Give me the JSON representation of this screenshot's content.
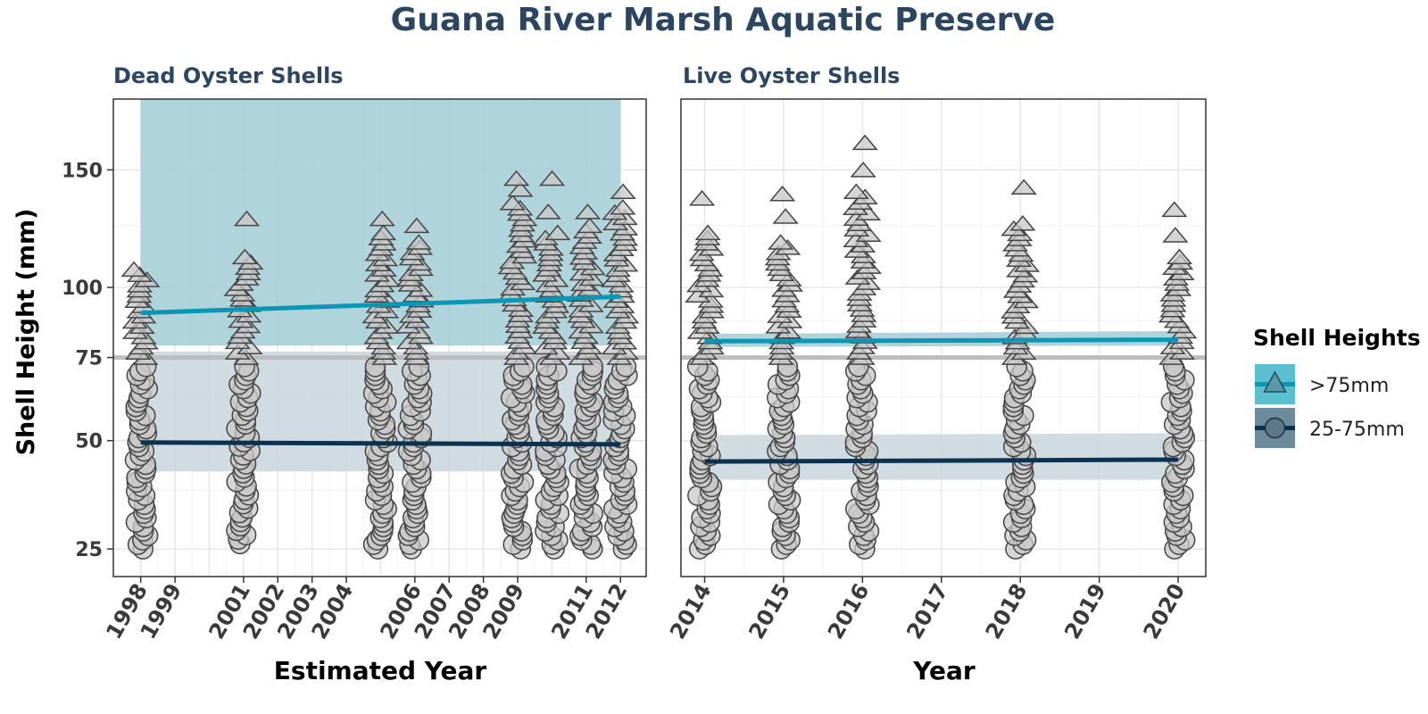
{
  "title": "Guana River Marsh Aquatic Preserve",
  "ylabel": "Shell Height (mm)",
  "legend": {
    "title": "Shell Heights",
    "items": [
      {
        "label": ">75mm",
        "shape": "triangle",
        "line_color": "#0a96b4",
        "fill_color": "#5bbfd0"
      },
      {
        "label": "25-75mm",
        "shape": "circle",
        "line_color": "#0b3150",
        "fill_color": "#6b8a9c"
      }
    ]
  },
  "colors": {
    "large_line": "#0a96b4",
    "small_line": "#0b3150",
    "large_band": "#a2ccd5",
    "small_band": "#c9d5dd",
    "ref_line": "#bdbdbd",
    "point_fill": "#c8c8c8",
    "point_stroke": "#444444",
    "title": "#2c4560"
  },
  "chart_data": [
    {
      "type": "scatter",
      "facet_title": "Dead Oyster Shells",
      "xlabel": "Estimated Year",
      "xlim": [
        1997.2,
        2012.75
      ],
      "ylim": [
        20,
        185
      ],
      "y_ticks": [
        25,
        50,
        75,
        100,
        150
      ],
      "x_ticks": [
        1998,
        1999,
        2001,
        2002,
        2003,
        2004,
        2006,
        2007,
        2008,
        2009,
        2011,
        2012
      ],
      "x_gridlines": [
        1998,
        1999,
        2000,
        2001,
        2002,
        2003,
        2004,
        2005,
        2006,
        2007,
        2008,
        2009,
        2010,
        2011,
        2012
      ],
      "y_scale": "sqrt",
      "reference_line": 75,
      "point_groups": [
        {
          "x": 1998.0,
          "small": [
            25,
            72
          ],
          "large": [
            75,
            107
          ],
          "large_outliers": []
        },
        {
          "x": 2001.0,
          "small": [
            26,
            72
          ],
          "large": [
            75,
            112
          ],
          "large_outliers": [
            128
          ]
        },
        {
          "x": 2005.0,
          "small": [
            25,
            72
          ],
          "large": [
            75,
            122
          ],
          "large_outliers": [
            128
          ]
        },
        {
          "x": 2006.0,
          "small": [
            25,
            72
          ],
          "large": [
            75,
            118
          ],
          "large_outliers": [
            125
          ]
        },
        {
          "x": 2009.0,
          "small": [
            25,
            72
          ],
          "large": [
            75,
            135
          ],
          "large_outliers": [
            141,
            146
          ]
        },
        {
          "x": 2010.0,
          "small": [
            25,
            72
          ],
          "large": [
            75,
            122
          ],
          "large_outliers": [
            131,
            146
          ]
        },
        {
          "x": 2011.0,
          "small": [
            25,
            72
          ],
          "large": [
            75,
            125
          ],
          "large_outliers": [
            131
          ]
        },
        {
          "x": 2012.0,
          "small": [
            25,
            72
          ],
          "large": [
            75,
            133
          ],
          "large_outliers": [
            140
          ]
        }
      ],
      "series": [
        {
          "name": ">75mm",
          "x": [
            1998,
            2012
          ],
          "y": [
            90.5,
            96.5
          ],
          "band_lower": [
            79,
            79
          ],
          "band_upper": [
            185,
            185
          ]
        },
        {
          "name": "25-75mm",
          "x": [
            1998,
            2012
          ],
          "y": [
            49.5,
            49
          ],
          "band_lower": [
            42,
            42
          ],
          "band_upper": [
            77,
            77
          ]
        }
      ]
    },
    {
      "type": "scatter",
      "facet_title": "Live Oyster Shells",
      "xlabel": "Year",
      "xlim": [
        2013.7,
        2020.35
      ],
      "ylim": [
        20,
        185
      ],
      "y_ticks": [
        25,
        50,
        75,
        100,
        150
      ],
      "x_ticks": [
        2014,
        2015,
        2016,
        2017,
        2018,
        2019,
        2020
      ],
      "x_gridlines": [
        2014,
        2015,
        2016,
        2017,
        2018,
        2019,
        2020
      ],
      "y_scale": "sqrt",
      "reference_line": 75,
      "point_groups": [
        {
          "x": 2014.0,
          "small": [
            25,
            72
          ],
          "large": [
            75,
            122
          ],
          "large_outliers": [
            137
          ]
        },
        {
          "x": 2015.0,
          "small": [
            25,
            72
          ],
          "large": [
            75,
            118
          ],
          "large_outliers": [
            129,
            139
          ]
        },
        {
          "x": 2016.0,
          "small": [
            25,
            72
          ],
          "large": [
            75,
            140
          ],
          "large_outliers": [
            150,
            163
          ]
        },
        {
          "x": 2018.0,
          "small": [
            25,
            72
          ],
          "large": [
            75,
            126
          ],
          "large_outliers": [
            142
          ]
        },
        {
          "x": 2020.0,
          "small": [
            25,
            72
          ],
          "large": [
            75,
            112
          ],
          "large_outliers": [
            121,
            132
          ]
        }
      ],
      "series": [
        {
          "name": ">75mm",
          "x": [
            2014,
            2020
          ],
          "y": [
            80.5,
            81
          ],
          "band_lower": [
            78.5,
            79
          ],
          "band_upper": [
            83,
            84
          ]
        },
        {
          "name": "25-75mm",
          "x": [
            2014,
            2020
          ],
          "y": [
            44.5,
            45
          ],
          "band_lower": [
            40,
            40
          ],
          "band_upper": [
            51.5,
            52
          ]
        }
      ]
    }
  ]
}
